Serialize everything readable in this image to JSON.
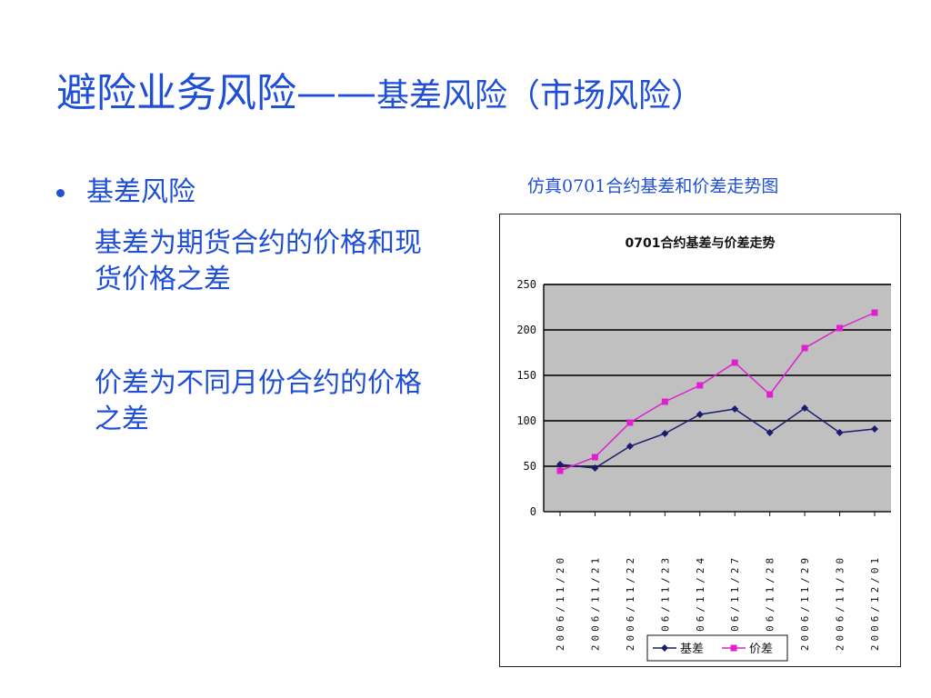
{
  "slide": {
    "title_main": "避险业务风险——",
    "title_sub": "基差风险（市场风险）",
    "bullet": "基差风险",
    "para1": "基差为期货合约的价格和现货价格之差",
    "para2": "价差为不同月份合约的价格之差",
    "chart_caption": "仿真0701合约基差和价差走势图"
  },
  "colors": {
    "text_blue": "#1f4fd6",
    "plot_bg": "#c0c0c0",
    "series_basis": "#1a1a6e",
    "series_spread": "#e020d0"
  },
  "chart_data": {
    "type": "line",
    "title": "0701合约基差与价差走势",
    "xlabel": "",
    "ylabel": "",
    "categories": [
      "2006/11/20",
      "2006/11/21",
      "2006/11/22",
      "2006/11/23",
      "2006/11/24",
      "2006/11/27",
      "2006/11/28",
      "2006/11/29",
      "2006/11/30",
      "2006/12/01"
    ],
    "series": [
      {
        "name": "基差",
        "values": [
          52,
          48,
          72,
          86,
          107,
          113,
          87,
          114,
          87,
          91
        ]
      },
      {
        "name": "价差",
        "values": [
          45,
          60,
          98,
          121,
          139,
          164,
          129,
          180,
          202,
          219
        ]
      }
    ],
    "ylim": [
      0,
      250
    ],
    "yticks": [
      0,
      50,
      100,
      150,
      200,
      250
    ],
    "grid": true,
    "legend": "bottom"
  }
}
